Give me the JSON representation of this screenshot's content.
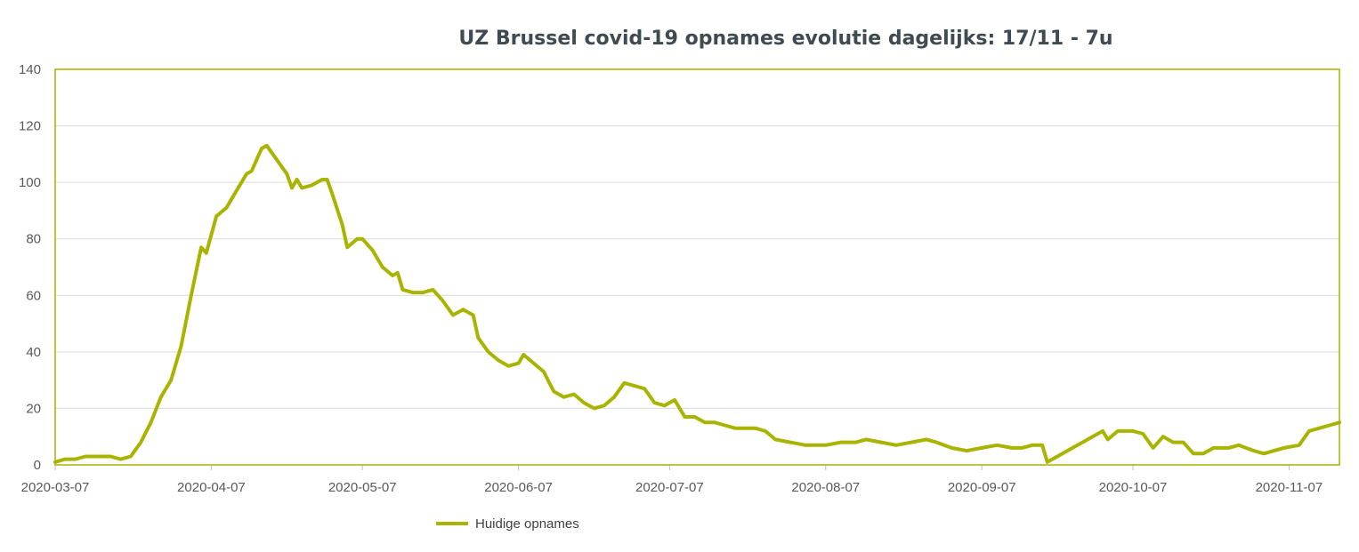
{
  "chart_data": {
    "type": "line",
    "title": "UZ Brussel covid-19 opnames evolutie dagelijks: 17/11 - 7u",
    "xlabel": "",
    "ylabel": "",
    "ylim": [
      0,
      140
    ],
    "yticks": [
      0,
      20,
      40,
      60,
      80,
      100,
      120,
      140
    ],
    "x_start": "2020-03-07",
    "x_end": "2020-11-17",
    "xticks": [
      "2020-03-07",
      "2020-04-07",
      "2020-05-07",
      "2020-06-07",
      "2020-07-07",
      "2020-08-07",
      "2020-09-07",
      "2020-10-07",
      "2020-11-07"
    ],
    "grid": "horizontal",
    "legend_position": "bottom",
    "plot_border_color": "#a9b400",
    "series": [
      {
        "name": "Huidige opnames",
        "color": "#a9b400",
        "points": [
          [
            "2020-03-07",
            1
          ],
          [
            "2020-03-09",
            2
          ],
          [
            "2020-03-11",
            2
          ],
          [
            "2020-03-13",
            3
          ],
          [
            "2020-03-16",
            3
          ],
          [
            "2020-03-18",
            3
          ],
          [
            "2020-03-20",
            2
          ],
          [
            "2020-03-22",
            3
          ],
          [
            "2020-03-24",
            8
          ],
          [
            "2020-03-26",
            15
          ],
          [
            "2020-03-28",
            24
          ],
          [
            "2020-03-30",
            30
          ],
          [
            "2020-04-01",
            42
          ],
          [
            "2020-04-03",
            60
          ],
          [
            "2020-04-05",
            77
          ],
          [
            "2020-04-06",
            75
          ],
          [
            "2020-04-08",
            88
          ],
          [
            "2020-04-10",
            91
          ],
          [
            "2020-04-12",
            97
          ],
          [
            "2020-04-14",
            103
          ],
          [
            "2020-04-15",
            104
          ],
          [
            "2020-04-17",
            112
          ],
          [
            "2020-04-18",
            113
          ],
          [
            "2020-04-20",
            108
          ],
          [
            "2020-04-22",
            103
          ],
          [
            "2020-04-23",
            98
          ],
          [
            "2020-04-24",
            101
          ],
          [
            "2020-04-25",
            98
          ],
          [
            "2020-04-27",
            99
          ],
          [
            "2020-04-29",
            101
          ],
          [
            "2020-04-30",
            101
          ],
          [
            "2020-05-01",
            96
          ],
          [
            "2020-05-03",
            85
          ],
          [
            "2020-05-04",
            77
          ],
          [
            "2020-05-06",
            80
          ],
          [
            "2020-05-07",
            80
          ],
          [
            "2020-05-09",
            76
          ],
          [
            "2020-05-11",
            70
          ],
          [
            "2020-05-13",
            67
          ],
          [
            "2020-05-14",
            68
          ],
          [
            "2020-05-15",
            62
          ],
          [
            "2020-05-17",
            61
          ],
          [
            "2020-05-19",
            61
          ],
          [
            "2020-05-21",
            62
          ],
          [
            "2020-05-23",
            58
          ],
          [
            "2020-05-25",
            53
          ],
          [
            "2020-05-27",
            55
          ],
          [
            "2020-05-29",
            53
          ],
          [
            "2020-05-30",
            45
          ],
          [
            "2020-06-01",
            40
          ],
          [
            "2020-06-03",
            37
          ],
          [
            "2020-06-05",
            35
          ],
          [
            "2020-06-07",
            36
          ],
          [
            "2020-06-08",
            39
          ],
          [
            "2020-06-10",
            36
          ],
          [
            "2020-06-12",
            33
          ],
          [
            "2020-06-14",
            26
          ],
          [
            "2020-06-16",
            24
          ],
          [
            "2020-06-18",
            25
          ],
          [
            "2020-06-20",
            22
          ],
          [
            "2020-06-22",
            20
          ],
          [
            "2020-06-24",
            21
          ],
          [
            "2020-06-26",
            24
          ],
          [
            "2020-06-28",
            29
          ],
          [
            "2020-06-30",
            28
          ],
          [
            "2020-07-02",
            27
          ],
          [
            "2020-07-04",
            22
          ],
          [
            "2020-07-06",
            21
          ],
          [
            "2020-07-08",
            23
          ],
          [
            "2020-07-10",
            17
          ],
          [
            "2020-07-12",
            17
          ],
          [
            "2020-07-14",
            15
          ],
          [
            "2020-07-16",
            15
          ],
          [
            "2020-07-18",
            14
          ],
          [
            "2020-07-20",
            13
          ],
          [
            "2020-07-24",
            13
          ],
          [
            "2020-07-26",
            12
          ],
          [
            "2020-07-28",
            9
          ],
          [
            "2020-07-31",
            8
          ],
          [
            "2020-08-03",
            7
          ],
          [
            "2020-08-07",
            7
          ],
          [
            "2020-08-10",
            8
          ],
          [
            "2020-08-13",
            8
          ],
          [
            "2020-08-15",
            9
          ],
          [
            "2020-08-18",
            8
          ],
          [
            "2020-08-21",
            7
          ],
          [
            "2020-08-24",
            8
          ],
          [
            "2020-08-27",
            9
          ],
          [
            "2020-08-29",
            8
          ],
          [
            "2020-09-01",
            6
          ],
          [
            "2020-09-04",
            5
          ],
          [
            "2020-09-07",
            6
          ],
          [
            "2020-09-10",
            7
          ],
          [
            "2020-09-13",
            6
          ],
          [
            "2020-09-15",
            6
          ],
          [
            "2020-09-17",
            7
          ],
          [
            "2020-09-19",
            7
          ],
          [
            "2020-09-20",
            1
          ],
          [
            "2020-09-22",
            3
          ],
          [
            "2020-09-25",
            6
          ],
          [
            "2020-09-27",
            8
          ],
          [
            "2020-09-29",
            10
          ],
          [
            "2020-10-01",
            12
          ],
          [
            "2020-10-02",
            9
          ],
          [
            "2020-10-04",
            12
          ],
          [
            "2020-10-07",
            12
          ],
          [
            "2020-10-09",
            11
          ],
          [
            "2020-10-11",
            6
          ],
          [
            "2020-10-13",
            10
          ],
          [
            "2020-10-15",
            8
          ],
          [
            "2020-10-17",
            8
          ],
          [
            "2020-10-19",
            4
          ],
          [
            "2020-10-21",
            4
          ],
          [
            "2020-10-23",
            6
          ],
          [
            "2020-10-26",
            6
          ],
          [
            "2020-10-28",
            7
          ],
          [
            "2020-10-31",
            5
          ],
          [
            "2020-11-02",
            4
          ],
          [
            "2020-11-04",
            5
          ],
          [
            "2020-11-06",
            6
          ],
          [
            "2020-11-09",
            7
          ],
          [
            "2020-11-11",
            12
          ],
          [
            "2020-11-13",
            13
          ],
          [
            "2020-11-15",
            14
          ],
          [
            "2020-11-17",
            15
          ]
        ]
      }
    ]
  }
}
